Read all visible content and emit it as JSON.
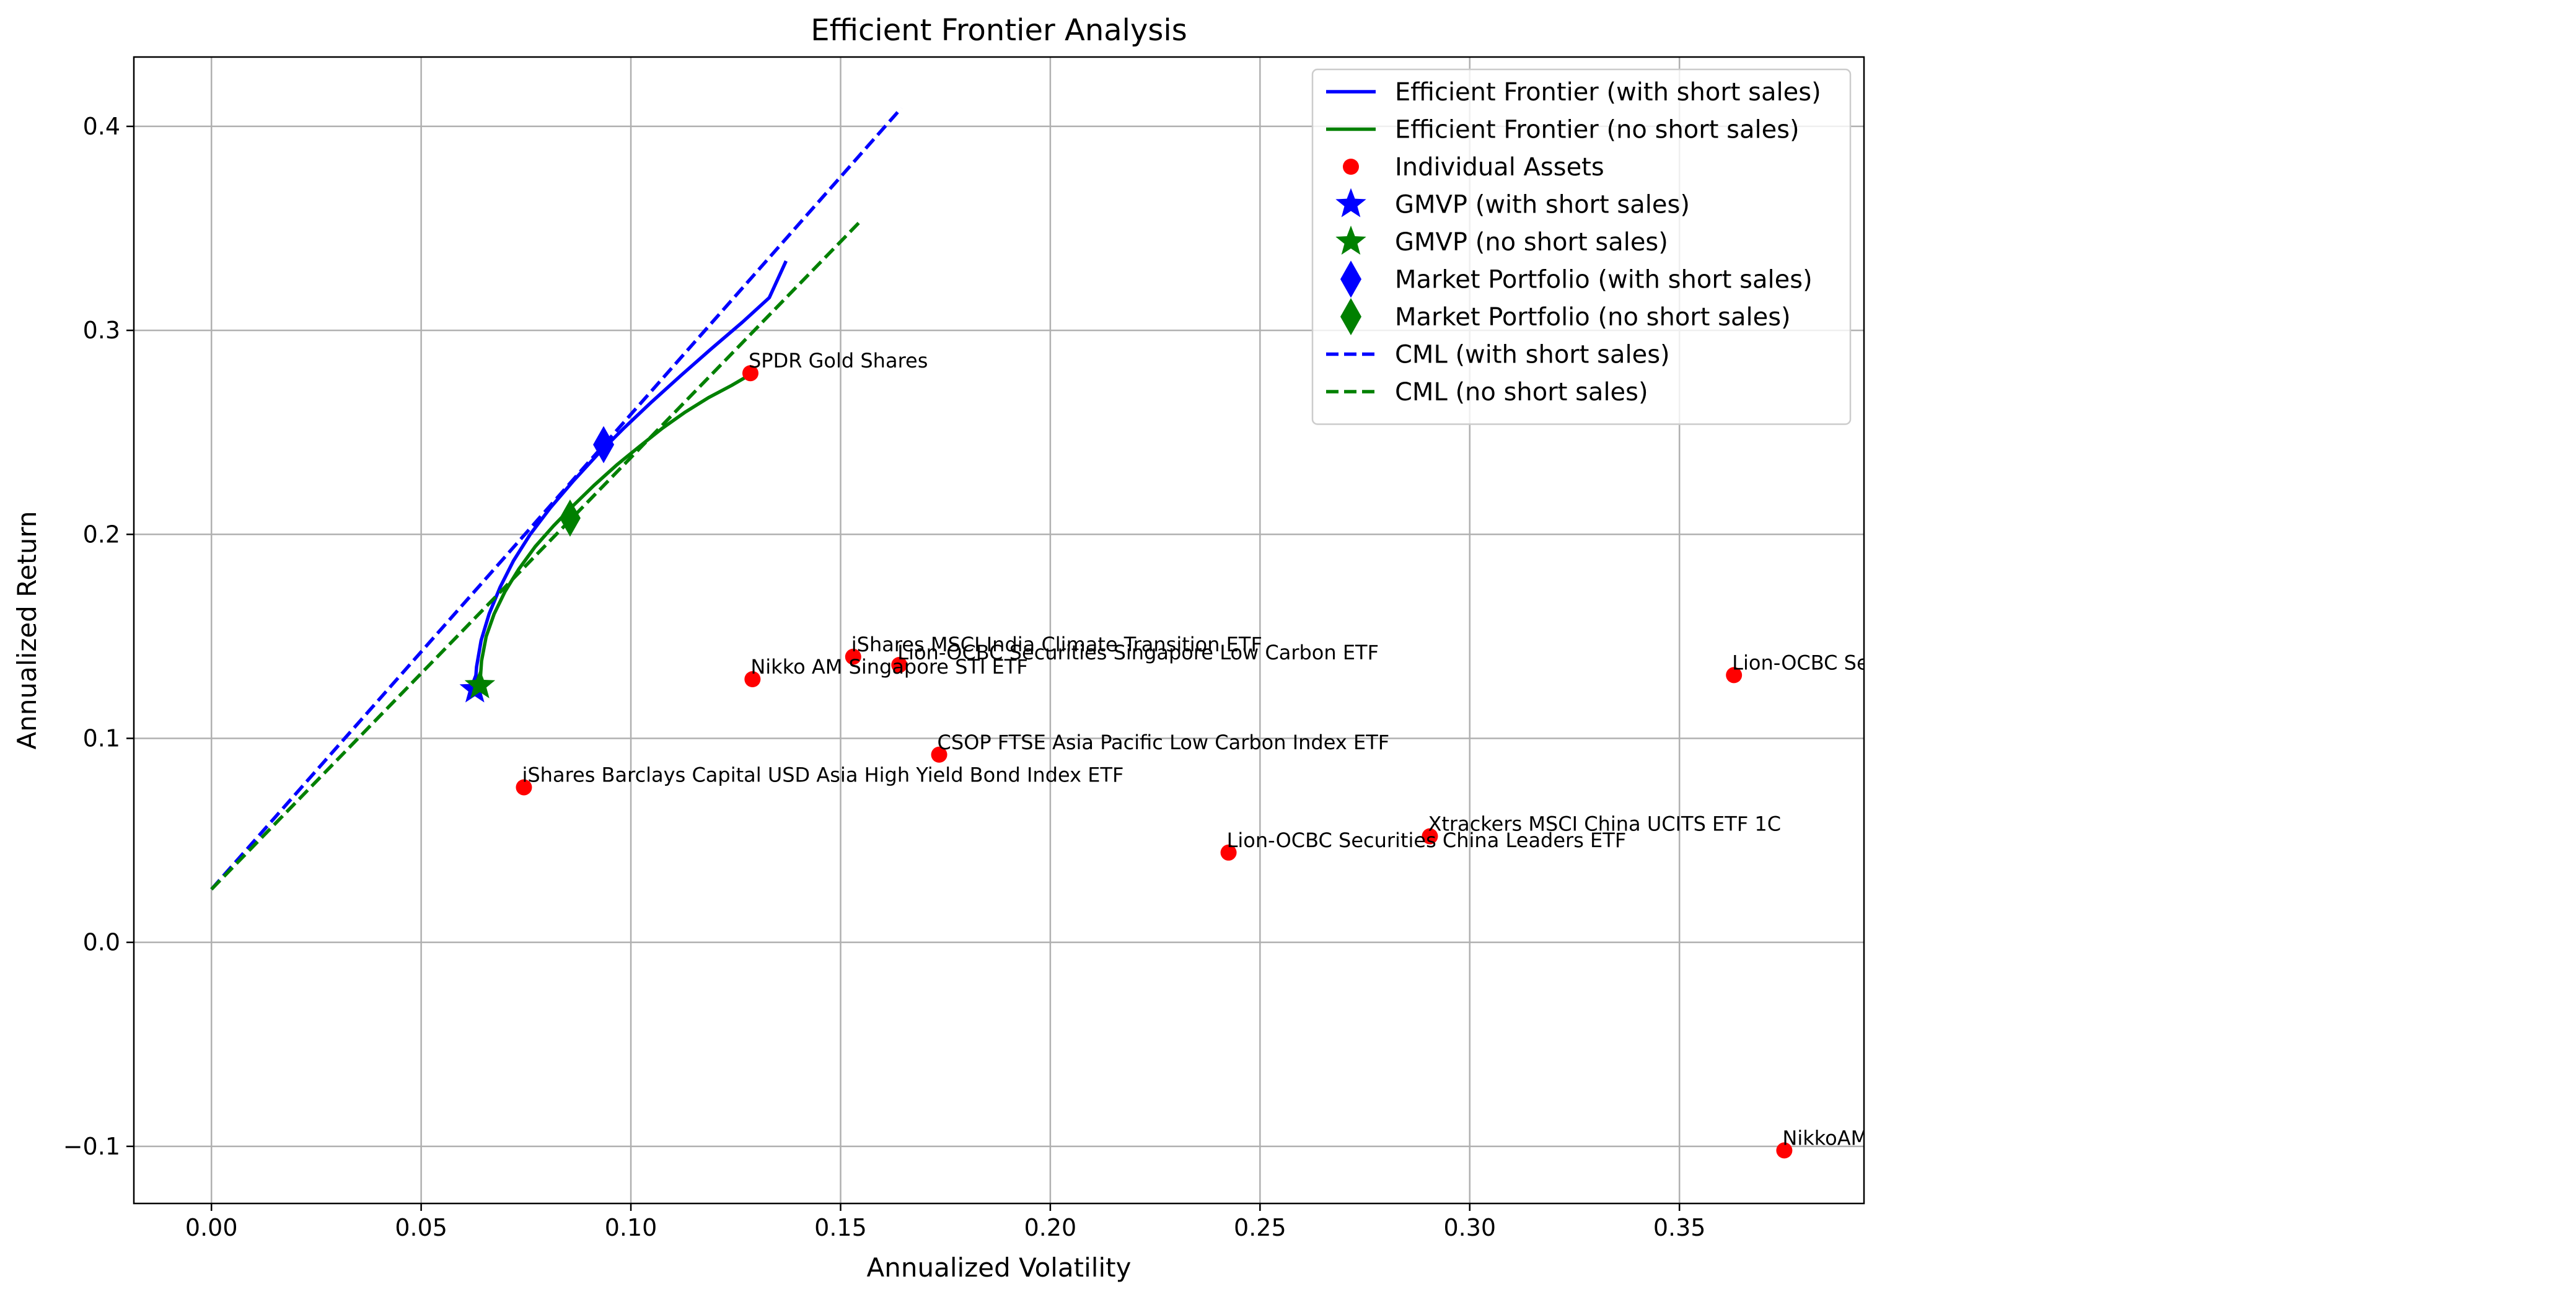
{
  "chart_data": {
    "type": "scatter",
    "title": "Efficient Frontier Analysis",
    "xlabel": "Annualized Volatility",
    "ylabel": "Annualized Return",
    "xlim": [
      -0.0185,
      0.394
    ],
    "ylim": [
      -0.128,
      0.434
    ],
    "x_ticks": [
      0.0,
      0.05,
      0.1,
      0.15,
      0.2,
      0.25,
      0.3,
      0.35
    ],
    "x_tick_labels": [
      "0.00",
      "0.05",
      "0.10",
      "0.15",
      "0.20",
      "0.25",
      "0.30",
      "0.35"
    ],
    "y_ticks": [
      -0.1,
      0.0,
      0.1,
      0.2,
      0.3,
      0.4
    ],
    "y_tick_labels": [
      "−0.1",
      "0.0",
      "0.1",
      "0.2",
      "0.3",
      "0.4"
    ],
    "grid": true,
    "legend_position": "top-right",
    "series": [
      {
        "name": "Efficient Frontier (with short sales)",
        "kind": "line",
        "color": "#0000ff",
        "dash": "solid",
        "x": [
          0.0628,
          0.0632,
          0.0643,
          0.0662,
          0.0688,
          0.072,
          0.076,
          0.0808,
          0.0862,
          0.092,
          0.0983,
          0.105,
          0.112,
          0.1192,
          0.1266,
          0.133,
          0.137
        ],
        "y": [
          0.124,
          0.135,
          0.148,
          0.161,
          0.174,
          0.187,
          0.2,
          0.213,
          0.226,
          0.239,
          0.252,
          0.265,
          0.278,
          0.291,
          0.304,
          0.316,
          0.334
        ]
      },
      {
        "name": "Efficient Frontier (no short sales)",
        "kind": "line",
        "color": "#008000",
        "dash": "solid",
        "x": [
          0.064,
          0.0644,
          0.0655,
          0.0674,
          0.07,
          0.0733,
          0.0772,
          0.0815,
          0.0862,
          0.0912,
          0.0966,
          0.102,
          0.1075,
          0.113,
          0.1185,
          0.124,
          0.129
        ],
        "y": [
          0.126,
          0.138,
          0.15,
          0.161,
          0.172,
          0.183,
          0.194,
          0.204,
          0.214,
          0.224,
          0.234,
          0.243,
          0.252,
          0.26,
          0.267,
          0.273,
          0.279
        ]
      },
      {
        "name": "Individual Assets",
        "kind": "scatter",
        "color": "#ff0000",
        "points": [
          {
            "label": "SPDR Gold Shares",
            "x": 0.1285,
            "y": 0.279
          },
          {
            "label": "iShares MSCI India Climate Transition ETF",
            "x": 0.153,
            "y": 0.14
          },
          {
            "label": "Lion-OCBC Securities Singapore Low Carbon ETF",
            "x": 0.164,
            "y": 0.136
          },
          {
            "label": "Nikko AM Singapore STI ETF",
            "x": 0.129,
            "y": 0.129
          },
          {
            "label": "Lion-OCBC Securities Hang Seng TECH ETF",
            "x": 0.363,
            "y": 0.131
          },
          {
            "label": "CSOP FTSE Asia Pacific Low Carbon Index ETF",
            "x": 0.1735,
            "y": 0.092
          },
          {
            "label": "iShares Barclays Capital USD Asia High Yield Bond Index ETF",
            "x": 0.0745,
            "y": 0.076
          },
          {
            "label": "Xtrackers MSCI China UCITS ETF 1C",
            "x": 0.2905,
            "y": 0.052
          },
          {
            "label": "Lion-OCBC Securities China Leaders ETF",
            "x": 0.2425,
            "y": 0.044
          },
          {
            "label": "NikkoAM-StraitsTrading MSCI China Electric Vehicles and Future Mobile ETF",
            "x": 0.375,
            "y": -0.102
          }
        ]
      },
      {
        "name": "GMVP (with short sales)",
        "kind": "marker",
        "marker": "star",
        "color": "#0000ff",
        "x": [
          0.0628
        ],
        "y": [
          0.124
        ]
      },
      {
        "name": "GMVP (no short sales)",
        "kind": "marker",
        "marker": "star",
        "color": "#008000",
        "x": [
          0.064
        ],
        "y": [
          0.126
        ]
      },
      {
        "name": "Market Portfolio (with short sales)",
        "kind": "marker",
        "marker": "diamond",
        "color": "#0000ff",
        "x": [
          0.0935
        ],
        "y": [
          0.244
        ]
      },
      {
        "name": "Market Portfolio (no short sales)",
        "kind": "marker",
        "marker": "diamond",
        "color": "#008000",
        "x": [
          0.0855
        ],
        "y": [
          0.208
        ]
      },
      {
        "name": "CML (with short sales)",
        "kind": "line",
        "color": "#0000ff",
        "dash": "dashed",
        "x": [
          0.0,
          0.1645
        ],
        "y": [
          0.026,
          0.409
        ]
      },
      {
        "name": "CML (no short sales)",
        "kind": "line",
        "color": "#008000",
        "dash": "dashed",
        "x": [
          0.0,
          0.1545
        ],
        "y": [
          0.026,
          0.353
        ]
      }
    ]
  }
}
